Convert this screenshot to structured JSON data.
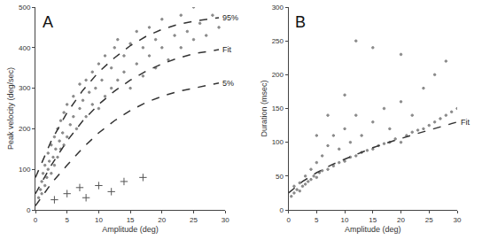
{
  "chart_data": [
    {
      "type": "scatter",
      "title": "A",
      "x_label": "Amplitude (deg)",
      "y_label": "Peak velocity (deg/sec)",
      "xlim": [
        0,
        30
      ],
      "xticks": [
        0,
        5,
        10,
        15,
        20,
        25,
        30
      ],
      "ylim": [
        0,
        500
      ],
      "yticks": [
        0,
        100,
        200,
        300,
        400,
        500
      ],
      "grid": false,
      "series": [
        {
          "type": "scatter",
          "color": "#8a8a8a",
          "marker": "dot",
          "x": [
            0.5,
            0.8,
            1,
            1,
            1.2,
            1.5,
            1.5,
            1.8,
            2,
            2,
            2.2,
            2.5,
            2.5,
            2.8,
            3,
            3,
            3.2,
            3.5,
            3.5,
            3.8,
            4,
            4,
            4.3,
            4.5,
            4.5,
            5,
            5,
            5.5,
            6,
            6,
            6.5,
            7,
            7,
            7.5,
            8,
            8,
            8.5,
            9,
            9,
            9.5,
            10,
            10,
            10.5,
            11,
            11,
            12,
            12,
            12.5,
            13,
            13,
            14,
            14,
            15,
            15,
            16,
            16,
            17,
            17,
            18,
            18,
            19,
            19,
            20,
            20,
            21,
            22,
            23,
            23,
            24,
            25,
            25,
            26,
            27,
            28,
            29
          ],
          "values": [
            30,
            50,
            40,
            70,
            90,
            60,
            110,
            80,
            100,
            140,
            120,
            90,
            160,
            130,
            110,
            180,
            150,
            130,
            200,
            170,
            150,
            220,
            190,
            160,
            240,
            180,
            260,
            210,
            230,
            280,
            200,
            250,
            310,
            270,
            230,
            320,
            290,
            260,
            340,
            300,
            250,
            360,
            320,
            280,
            380,
            300,
            350,
            400,
            320,
            420,
            340,
            380,
            300,
            410,
            360,
            440,
            330,
            400,
            380,
            450,
            350,
            420,
            400,
            470,
            370,
            430,
            400,
            480,
            440,
            420,
            500,
            460,
            430,
            480,
            450
          ]
        },
        {
          "type": "scatter",
          "color": "#555555",
          "marker": "cross",
          "x": [
            3,
            5,
            7,
            8,
            10,
            12,
            14,
            17
          ],
          "values": [
            25,
            40,
            55,
            30,
            60,
            45,
            70,
            80
          ]
        },
        {
          "type": "line",
          "name": "95%",
          "color": "#333333",
          "line_style": "dashed",
          "x": [
            0,
            2.5,
            5,
            7.5,
            10,
            12.5,
            15,
            17.5,
            20,
            22.5,
            25,
            27.5,
            29
          ],
          "values": [
            80,
            170,
            240,
            295,
            340,
            375,
            405,
            428,
            445,
            457,
            465,
            471,
            474
          ]
        },
        {
          "type": "line",
          "name": "Fit",
          "color": "#333333",
          "line_style": "dashed",
          "x": [
            0,
            2.5,
            5,
            7.5,
            10,
            12.5,
            15,
            17.5,
            20,
            22.5,
            25,
            27.5,
            29
          ],
          "values": [
            40,
            110,
            170,
            220,
            260,
            293,
            320,
            342,
            360,
            374,
            385,
            392,
            395
          ]
        },
        {
          "type": "line",
          "name": "5%",
          "color": "#333333",
          "line_style": "dashed",
          "x": [
            0,
            2.5,
            5,
            7.5,
            10,
            12.5,
            15,
            17.5,
            20,
            22.5,
            25,
            27.5,
            29
          ],
          "values": [
            10,
            65,
            110,
            153,
            190,
            220,
            245,
            265,
            280,
            292,
            300,
            308,
            313
          ]
        }
      ]
    },
    {
      "type": "scatter",
      "title": "B",
      "x_label": "Amplitude (deg)",
      "y_label": "Duration (msec)",
      "xlim": [
        0,
        30
      ],
      "xticks": [
        0,
        5,
        10,
        15,
        20,
        25,
        30
      ],
      "ylim": [
        0,
        300
      ],
      "yticks": [
        0,
        50,
        100,
        150,
        200,
        250,
        300
      ],
      "grid": false,
      "series": [
        {
          "type": "scatter",
          "color": "#8a8a8a",
          "marker": "dot",
          "x": [
            0.5,
            1,
            1,
            1.5,
            2,
            2,
            2.5,
            3,
            3,
            3.5,
            4,
            4,
            4.5,
            5,
            5,
            5.5,
            6,
            6,
            7,
            7,
            8,
            8,
            9,
            9,
            10,
            10,
            11,
            11,
            12,
            12,
            13,
            13,
            14,
            15,
            15,
            16,
            17,
            17,
            18,
            18,
            19,
            20,
            20,
            21,
            22,
            22,
            23,
            24,
            24,
            25,
            26,
            26,
            27,
            28,
            28,
            29,
            30,
            5,
            7,
            10,
            15,
            20,
            12
          ],
          "values": [
            20,
            25,
            35,
            30,
            28,
            40,
            35,
            38,
            50,
            42,
            45,
            60,
            50,
            48,
            70,
            55,
            58,
            80,
            60,
            95,
            65,
            110,
            70,
            90,
            72,
            120,
            78,
            100,
            80,
            140,
            85,
            110,
            88,
            90,
            130,
            95,
            98,
            150,
            100,
            120,
            105,
            100,
            160,
            110,
            115,
            140,
            118,
            120,
            180,
            125,
            130,
            200,
            135,
            140,
            220,
            145,
            150,
            110,
            140,
            170,
            240,
            230,
            250
          ]
        },
        {
          "type": "line",
          "name": "Fit",
          "color": "#333333",
          "line_style": "dashed",
          "x": [
            0,
            2.5,
            5,
            7.5,
            10,
            12.5,
            15,
            17.5,
            20,
            22.5,
            25,
            27.5,
            30
          ],
          "values": [
            25,
            42,
            55,
            66,
            75,
            84,
            92,
            99,
            106,
            112,
            118,
            124,
            130
          ]
        }
      ]
    }
  ]
}
